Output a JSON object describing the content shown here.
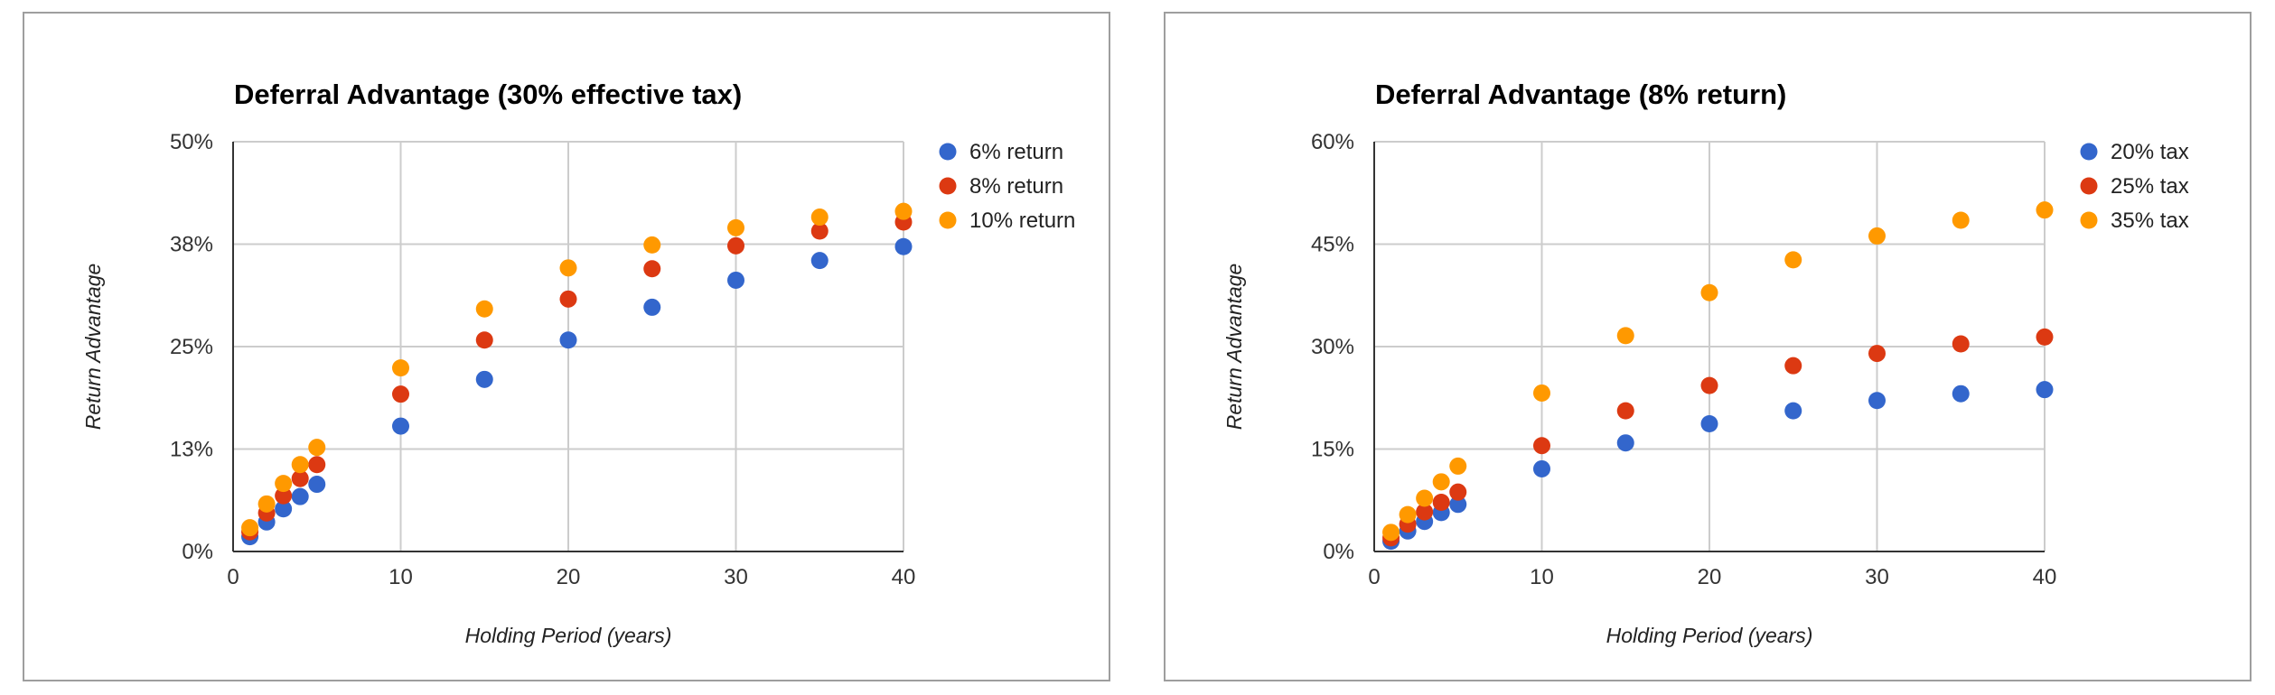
{
  "colors": {
    "blue": "#3366cc",
    "red": "#dc3912",
    "orange": "#ff9900"
  },
  "chart_data": [
    {
      "type": "scatter",
      "title": "Deferral Advantage (30% effective tax)",
      "xlabel": "Holding Period (years)",
      "ylabel": "Return Advantage",
      "xlim": [
        0,
        40
      ],
      "ylim": [
        0,
        0.5
      ],
      "x_ticks": [
        0,
        10,
        20,
        30,
        40
      ],
      "x_tick_labels": [
        "0",
        "10",
        "20",
        "30",
        "40"
      ],
      "y_ticks": [
        0,
        0.125,
        0.25,
        0.375,
        0.5
      ],
      "y_tick_labels": [
        "0%",
        "13%",
        "25%",
        "38%",
        "50%"
      ],
      "grid": true,
      "legend_position": "right",
      "x": [
        1,
        2,
        3,
        4,
        5,
        10,
        15,
        20,
        25,
        30,
        35,
        40
      ],
      "series": [
        {
          "name": "6% return",
          "color": "#3366cc",
          "values": [
            0.018,
            0.036,
            0.052,
            0.067,
            0.082,
            0.153,
            0.21,
            0.258,
            0.298,
            0.331,
            0.355,
            0.372
          ]
        },
        {
          "name": "8% return",
          "color": "#dc3912",
          "values": [
            0.024,
            0.047,
            0.068,
            0.089,
            0.106,
            0.192,
            0.258,
            0.308,
            0.345,
            0.373,
            0.391,
            0.402
          ]
        },
        {
          "name": "10% return",
          "color": "#ff9900",
          "values": [
            0.029,
            0.058,
            0.083,
            0.106,
            0.127,
            0.224,
            0.296,
            0.346,
            0.374,
            0.395,
            0.408,
            0.415
          ]
        }
      ]
    },
    {
      "type": "scatter",
      "title": "Deferral Advantage (8% return)",
      "xlabel": "Holding Period (years)",
      "ylabel": "Return Advantage",
      "xlim": [
        0,
        40
      ],
      "ylim": [
        0,
        0.6
      ],
      "x_ticks": [
        0,
        10,
        20,
        30,
        40
      ],
      "x_tick_labels": [
        "0",
        "10",
        "20",
        "30",
        "40"
      ],
      "y_ticks": [
        0,
        0.15,
        0.3,
        0.45,
        0.6
      ],
      "y_tick_labels": [
        "0%",
        "15%",
        "30%",
        "45%",
        "60%"
      ],
      "grid": true,
      "legend_position": "right",
      "x": [
        1,
        2,
        3,
        4,
        5,
        10,
        15,
        20,
        25,
        30,
        35,
        40
      ],
      "series": [
        {
          "name": "20% tax",
          "color": "#3366cc",
          "values": [
            0.015,
            0.03,
            0.044,
            0.057,
            0.069,
            0.121,
            0.159,
            0.187,
            0.206,
            0.221,
            0.231,
            0.237
          ]
        },
        {
          "name": "25% tax",
          "color": "#dc3912",
          "values": [
            0.02,
            0.04,
            0.058,
            0.072,
            0.087,
            0.155,
            0.206,
            0.243,
            0.272,
            0.29,
            0.304,
            0.314
          ]
        },
        {
          "name": "35% tax",
          "color": "#ff9900",
          "values": [
            0.028,
            0.054,
            0.078,
            0.102,
            0.125,
            0.232,
            0.316,
            0.379,
            0.427,
            0.462,
            0.485,
            0.5
          ]
        }
      ]
    }
  ]
}
